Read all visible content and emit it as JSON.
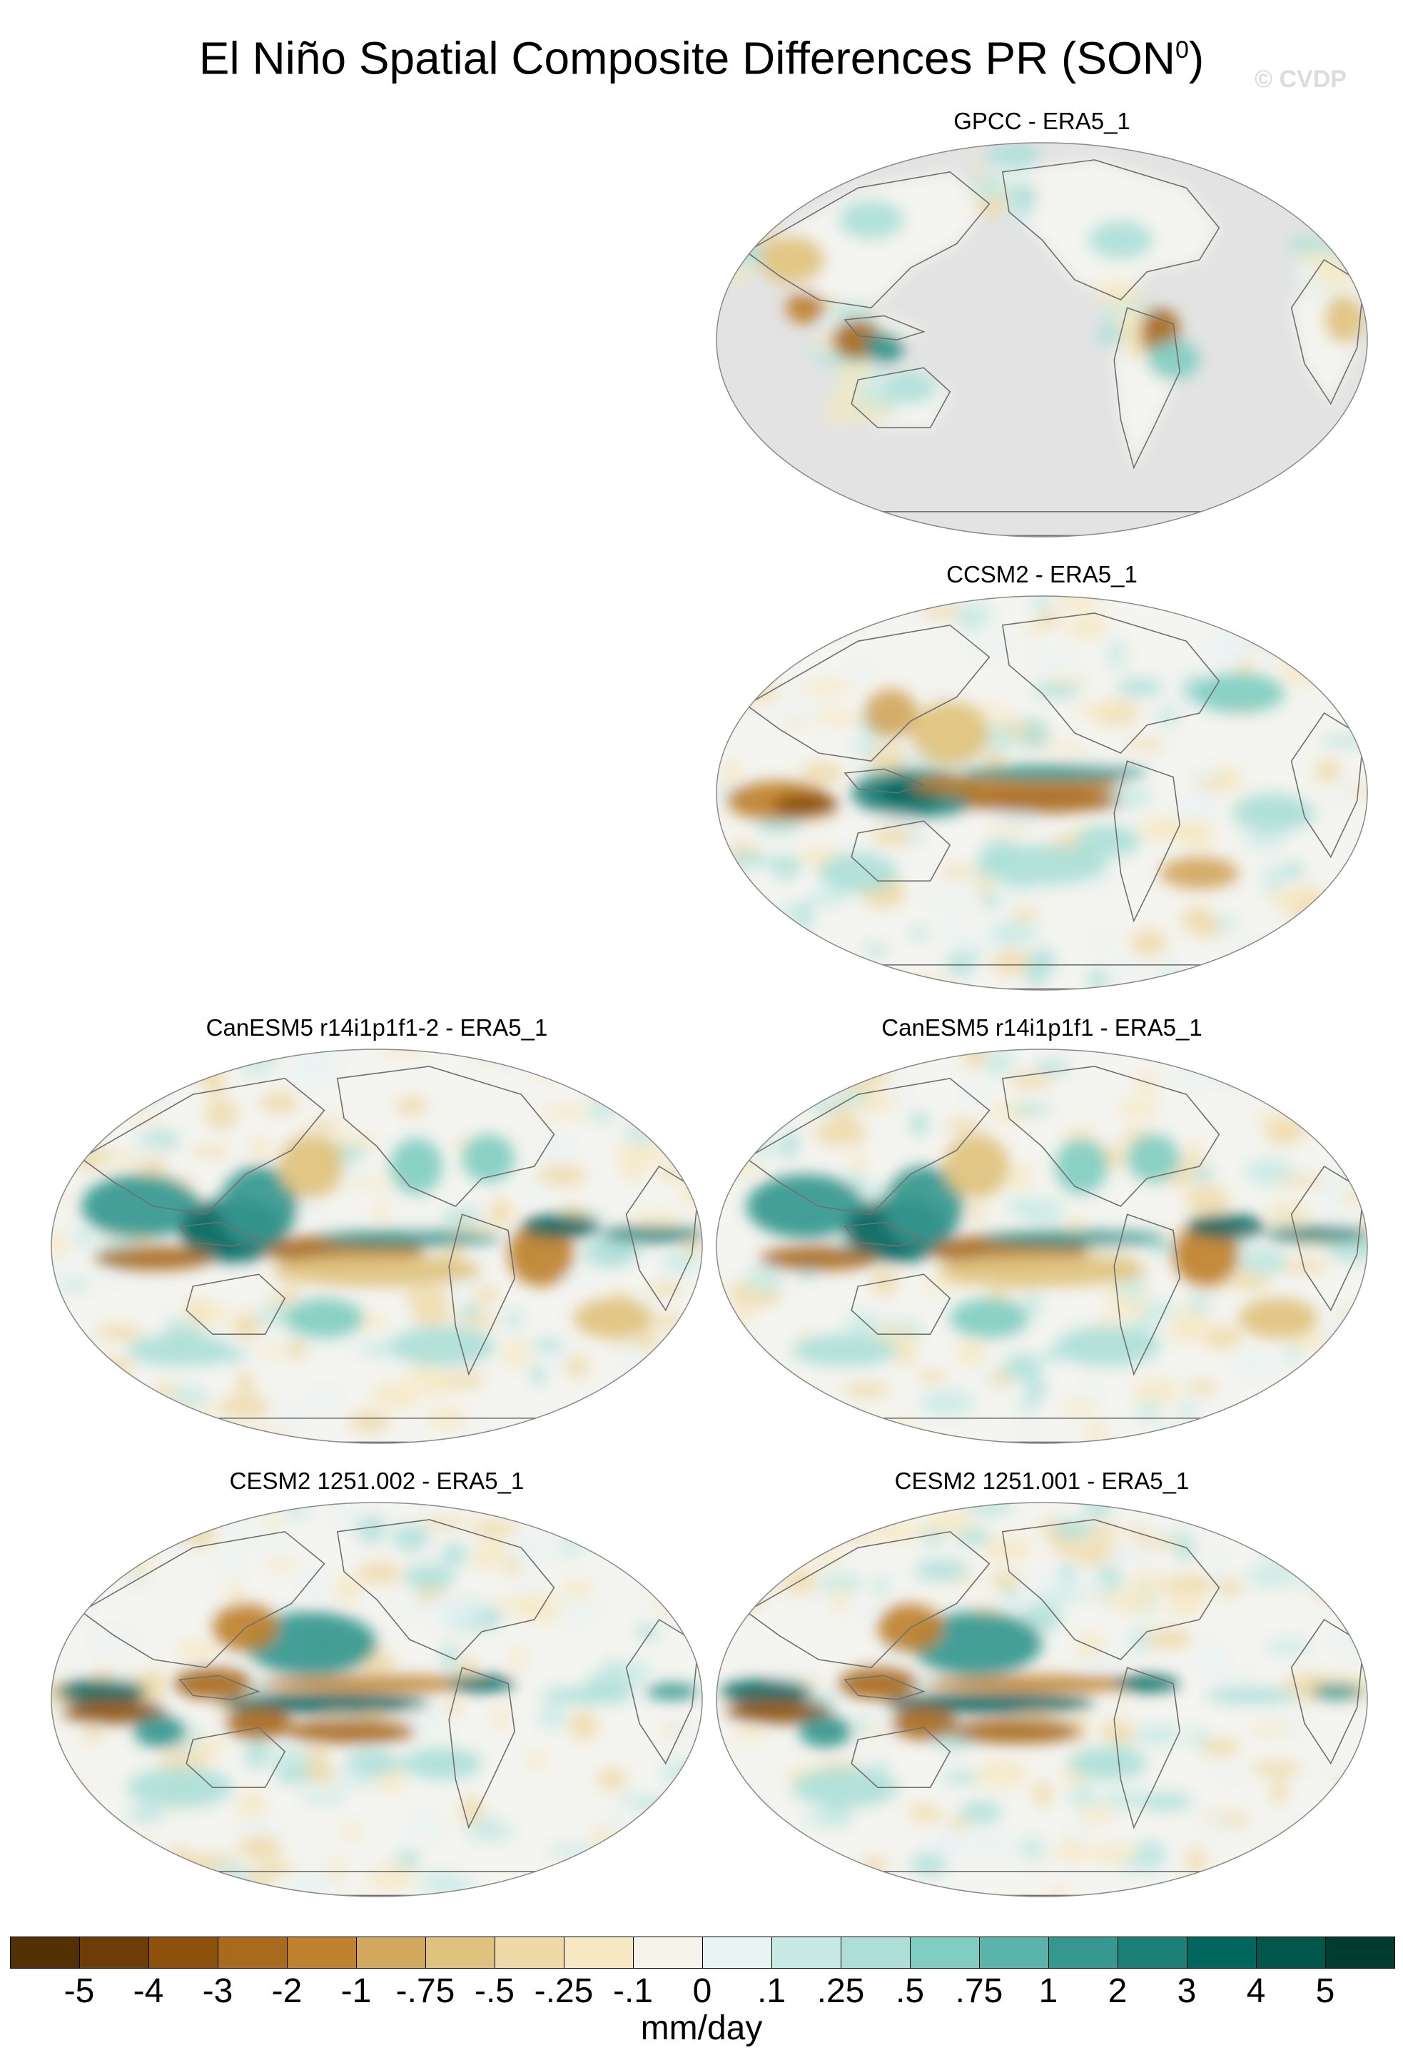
{
  "title": {
    "main": "El Niño Spatial Composite Differences PR (SON",
    "superscript": "0",
    "close": ")"
  },
  "watermark": "© CVDP",
  "panels": [
    {
      "id": "gpcc",
      "label": "GPCC - ERA5_1",
      "pattern": "observed"
    },
    {
      "id": "ccsm2",
      "label": "CCSM2 - ERA5_1",
      "pattern": "ccsm"
    },
    {
      "id": "canesm5-a",
      "label": "CanESM5 r14i1p1f1-2 - ERA5_1",
      "pattern": "canesm"
    },
    {
      "id": "canesm5-b",
      "label": "CanESM5 r14i1p1f1 - ERA5_1",
      "pattern": "canesm"
    },
    {
      "id": "cesm2-a",
      "label": "CESM2 1251.002 - ERA5_1",
      "pattern": "cesm"
    },
    {
      "id": "cesm2-b",
      "label": "CESM2 1251.001 - ERA5_1",
      "pattern": "cesm"
    }
  ],
  "colorbar": {
    "units": "mm/day",
    "labels": [
      "-5",
      "-4",
      "-3",
      "-2",
      "-1",
      "-.75",
      "-.5",
      "-.25",
      "-.1",
      "0",
      ".1",
      ".25",
      ".5",
      ".75",
      "1",
      "2",
      "3",
      "4",
      "5"
    ],
    "colors": [
      "#543005",
      "#6e3c08",
      "#8c510a",
      "#a86a1d",
      "#bf812d",
      "#d2a75e",
      "#dfc27d",
      "#efd9a8",
      "#f6e8c3",
      "#f5f3ea",
      "#e8f3f2",
      "#c7eae5",
      "#addfd8",
      "#80cdc1",
      "#5ab4ac",
      "#35978f",
      "#1d8078",
      "#01665e",
      "#01564c",
      "#003c30"
    ],
    "missing_color": "#e3e3e3",
    "ocean_neutral": "#f4f4f0"
  }
}
